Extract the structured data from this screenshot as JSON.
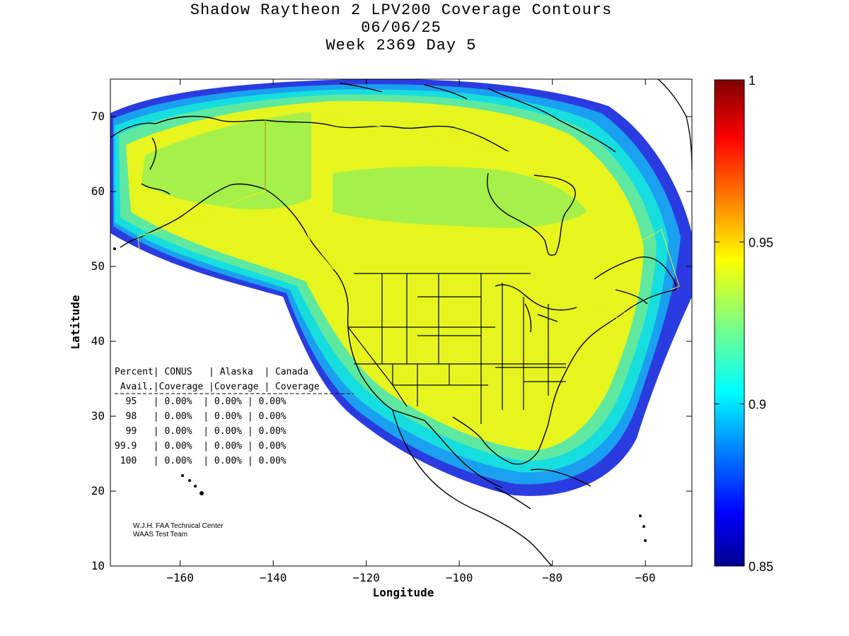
{
  "title": {
    "line1": "Shadow Raytheon 2 LPV200 Coverage Contours",
    "line2": "06/06/25",
    "line3": "Week 2369 Day 5"
  },
  "axes": {
    "xlabel": "Longitude",
    "ylabel": "Latitude",
    "xlim": [
      -175,
      -50
    ],
    "ylim": [
      10,
      75
    ],
    "xticks": [
      -160,
      -140,
      -120,
      -100,
      -80,
      -60
    ],
    "yticks": [
      10,
      20,
      30,
      40,
      50,
      60,
      70
    ],
    "xtick_labels": [
      "−160",
      "−140",
      "−120",
      "−100",
      "−80",
      "−60"
    ],
    "ytick_labels": [
      "10",
      "20",
      "30",
      "40",
      "50",
      "60",
      "70"
    ]
  },
  "colorbar": {
    "range": [
      0.85,
      1.0
    ],
    "ticks": [
      0.85,
      0.9,
      0.95,
      1.0
    ],
    "tick_labels": [
      "0.85",
      "0.9",
      "0.95",
      "1"
    ],
    "colormap": "jet"
  },
  "table": {
    "header1": "Percent| CONUS   | Alaska  | Canada",
    "header2": " Avail.|Coverage |Coverage | Coverage",
    "rows": [
      "  95   | 0.00%  | 0.00% | 0.00%",
      "  98   | 0.00%  | 0.00% | 0.00%",
      "  99   | 0.00%  | 0.00% | 0.00%",
      "99.9   | 0.00%  | 0.00% | 0.00%",
      " 100   | 0.00%  | 0.00% | 0.00%"
    ]
  },
  "credits": {
    "line1": "W.J.H. FAA Technical Center",
    "line2": "WAAS Test Team"
  },
  "colors": {
    "yellow": "#e6f51e",
    "green": "#a6f04a",
    "cyan": "#17dede",
    "blue": "#1a3fe6",
    "coast": "#000000"
  }
}
